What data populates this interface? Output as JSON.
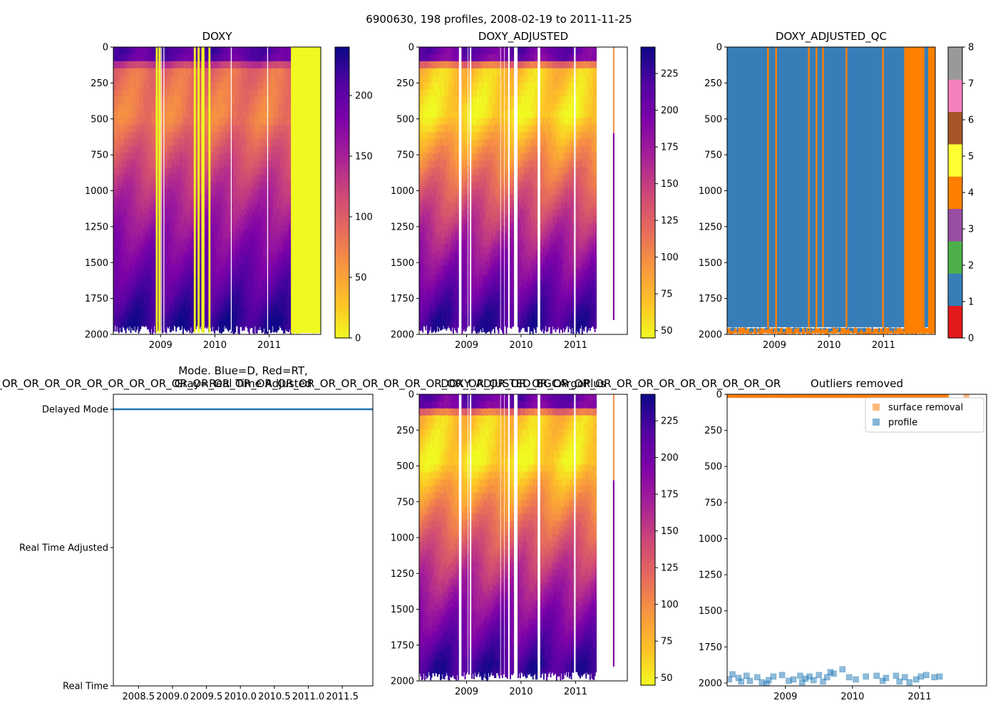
{
  "figure": {
    "suptitle": "6900630, 198 profiles, 2008-02-19 to 2011-11-25"
  },
  "chart_data": [
    {
      "id": "doxy",
      "type": "heatmap",
      "title": "DOXY",
      "colormap": "plasma_r",
      "xlim": [
        2008.13,
        2011.95
      ],
      "ylim": [
        2000,
        0
      ],
      "x_ticks": [
        {
          "value": 2009,
          "label": "2009"
        },
        {
          "value": 2010,
          "label": "2010"
        },
        {
          "value": 2011,
          "label": "2011"
        }
      ],
      "y_ticks": [
        {
          "value": 0,
          "label": "0"
        },
        {
          "value": 250,
          "label": "250"
        },
        {
          "value": 500,
          "label": "500"
        },
        {
          "value": 750,
          "label": "750"
        },
        {
          "value": 1000,
          "label": "1000"
        },
        {
          "value": 1250,
          "label": "1250"
        },
        {
          "value": 1500,
          "label": "1500"
        },
        {
          "value": 1750,
          "label": "1750"
        },
        {
          "value": 2000,
          "label": "2000"
        }
      ],
      "colorbar": {
        "min": 0,
        "max": 240,
        "ticks": [
          {
            "value": 0,
            "label": "0"
          },
          {
            "value": 50,
            "label": "50"
          },
          {
            "value": 100,
            "label": "100"
          },
          {
            "value": 150,
            "label": "150"
          },
          {
            "value": 200,
            "label": "200"
          }
        ]
      },
      "profile": {
        "surface": 205,
        "omz_depth": 500,
        "omz_value": 75,
        "deep_value": 225
      },
      "gaps": [
        {
          "start": 2011.4,
          "end": 2011.95,
          "value": 0
        }
      ],
      "zero_profiles": [
        2008.93,
        2008.98,
        2009.63,
        2009.7,
        2009.77,
        2009.79,
        2009.9
      ],
      "white_lines": [
        2009.01,
        2009.06,
        2010.3,
        2010.97
      ],
      "data_end": 2011.4
    },
    {
      "id": "doxy_adjusted",
      "type": "heatmap",
      "title": "DOXY_ADJUSTED",
      "colormap": "plasma_r",
      "xlim": [
        2008.13,
        2011.95
      ],
      "ylim": [
        2000,
        0
      ],
      "x_ticks": [
        {
          "value": 2009,
          "label": "2009"
        },
        {
          "value": 2010,
          "label": "2010"
        },
        {
          "value": 2011,
          "label": "2011"
        }
      ],
      "y_ticks": [
        {
          "value": 0,
          "label": "0"
        },
        {
          "value": 250,
          "label": "250"
        },
        {
          "value": 500,
          "label": "500"
        },
        {
          "value": 750,
          "label": "750"
        },
        {
          "value": 1000,
          "label": "1000"
        },
        {
          "value": 1250,
          "label": "1250"
        },
        {
          "value": 1500,
          "label": "1500"
        },
        {
          "value": 1750,
          "label": "1750"
        },
        {
          "value": 2000,
          "label": "2000"
        }
      ],
      "colorbar": {
        "min": 45,
        "max": 243,
        "ticks": [
          {
            "value": 50,
            "label": "50"
          },
          {
            "value": 75,
            "label": "75"
          },
          {
            "value": 100,
            "label": "100"
          },
          {
            "value": 125,
            "label": "125"
          },
          {
            "value": 150,
            "label": "150"
          },
          {
            "value": 175,
            "label": "175"
          },
          {
            "value": 200,
            "label": "200"
          },
          {
            "value": 225,
            "label": "225"
          }
        ]
      },
      "profile": {
        "surface": 205,
        "omz_depth": 480,
        "omz_value": 55,
        "deep_value": 225
      },
      "missing_profiles": [
        2008.87,
        2008.89,
        2009.02,
        2009.07,
        2009.62,
        2009.69,
        2009.76,
        2009.78,
        2009.88,
        2009.92,
        2010.31,
        2010.33,
        2010.98
      ],
      "data_end": 2011.38,
      "stray_profile": {
        "x": 2011.7,
        "depth_end": 1900,
        "value": 100
      }
    },
    {
      "id": "doxy_adjusted_qc",
      "type": "heatmap",
      "title": "DOXY_ADJUSTED_QC",
      "colormap": "qc",
      "xlim": [
        2008.13,
        2011.95
      ],
      "ylim": [
        2000,
        0
      ],
      "x_ticks": [
        {
          "value": 2009,
          "label": "2009"
        },
        {
          "value": 2010,
          "label": "2010"
        },
        {
          "value": 2011,
          "label": "2011"
        }
      ],
      "y_ticks": [
        {
          "value": 0,
          "label": "0"
        },
        {
          "value": 250,
          "label": "250"
        },
        {
          "value": 500,
          "label": "500"
        },
        {
          "value": 750,
          "label": "750"
        },
        {
          "value": 1000,
          "label": "1000"
        },
        {
          "value": 1250,
          "label": "1250"
        },
        {
          "value": 1500,
          "label": "1500"
        },
        {
          "value": 1750,
          "label": "1750"
        },
        {
          "value": 2000,
          "label": "2000"
        }
      ],
      "colorbar": {
        "min": 0,
        "max": 8,
        "ticks": [
          {
            "value": 0,
            "label": "0"
          },
          {
            "value": 1,
            "label": "1"
          },
          {
            "value": 2,
            "label": "2"
          },
          {
            "value": 3,
            "label": "3"
          },
          {
            "value": 4,
            "label": "4"
          },
          {
            "value": 5,
            "label": "5"
          },
          {
            "value": 6,
            "label": "6"
          },
          {
            "value": 7,
            "label": "7"
          },
          {
            "value": 8,
            "label": "8"
          }
        ]
      },
      "qc_colors": [
        "#e41a1c",
        "#377eb8",
        "#4daf4a",
        "#984ea3",
        "#ff7f00",
        "#ffff33",
        "#a65628",
        "#f781bf",
        "#999999"
      ],
      "flag4_profiles": [
        2008.88,
        2009.03,
        2009.63,
        2009.77,
        2009.89,
        2010.32,
        2010.99
      ],
      "flag4_block": [
        2011.38,
        2011.75
      ],
      "flag4_block2": [
        2011.82,
        2011.95
      ],
      "flag1_stripe": 2011.78,
      "data_end": 2011.95
    },
    {
      "id": "mode",
      "type": "line",
      "title_lines": [
        "Mode. Blue=D, Red=RT,",
        "Gray=Real Time Adjusted"
      ],
      "overflow_text": "OR_OR_OR_OR_OR_OR_OR_OR_OR_OR_OR_OR_OR_OR_OR_OR_OR_OR_OR_OR_OR_OR_OR_OR_OR_OR_OR_OR_OR_OR_OR_OR_OR_OR_OR_OR_OR_OR_OR_OR_OR_OR_OR_OR_OR_OR_OR_OR_OR_OR_OR",
      "xlim": [
        2008.13,
        2011.95
      ],
      "x_ticks": [
        {
          "value": 2008.5,
          "label": "2008.5"
        },
        {
          "value": 2009.0,
          "label": "2009.0"
        },
        {
          "value": 2009.5,
          "label": "2009.5"
        },
        {
          "value": 2010.0,
          "label": "2010.0"
        },
        {
          "value": 2010.5,
          "label": "2010.5"
        },
        {
          "value": 2011.0,
          "label": "2011.0"
        },
        {
          "value": 2011.5,
          "label": "2011.5"
        }
      ],
      "y_categories": [
        "Real Time",
        "Real Time Adjusted",
        "Delayed Mode"
      ],
      "series": [
        {
          "name": "mode",
          "x": [
            2008.13,
            2011.95
          ],
          "y": [
            "Delayed Mode",
            "Delayed Mode"
          ],
          "color": "#1f77b4"
        }
      ]
    },
    {
      "id": "doxy_adjusted_bgcargoplus",
      "type": "heatmap",
      "title": "DOXY_ADJUSTED_BGCArgoPlus",
      "colormap": "plasma_r",
      "xlim": [
        2008.13,
        2011.95
      ],
      "ylim": [
        2000,
        0
      ],
      "x_ticks": [
        {
          "value": 2009,
          "label": "2009"
        },
        {
          "value": 2010,
          "label": "2010"
        },
        {
          "value": 2011,
          "label": "2011"
        }
      ],
      "y_ticks": [
        {
          "value": 0,
          "label": "0"
        },
        {
          "value": 250,
          "label": "250"
        },
        {
          "value": 500,
          "label": "500"
        },
        {
          "value": 750,
          "label": "750"
        },
        {
          "value": 1000,
          "label": "1000"
        },
        {
          "value": 1250,
          "label": "1250"
        },
        {
          "value": 1500,
          "label": "1500"
        },
        {
          "value": 1750,
          "label": "1750"
        },
        {
          "value": 2000,
          "label": "2000"
        }
      ],
      "colorbar": {
        "min": 45,
        "max": 243,
        "ticks": [
          {
            "value": 50,
            "label": "50"
          },
          {
            "value": 75,
            "label": "75"
          },
          {
            "value": 100,
            "label": "100"
          },
          {
            "value": 125,
            "label": "125"
          },
          {
            "value": 150,
            "label": "150"
          },
          {
            "value": 175,
            "label": "175"
          },
          {
            "value": 200,
            "label": "200"
          },
          {
            "value": 225,
            "label": "225"
          }
        ]
      },
      "profile": {
        "surface": 205,
        "omz_depth": 480,
        "omz_value": 55,
        "deep_value": 225
      },
      "missing_profiles": [
        2008.87,
        2008.89,
        2009.02,
        2009.07,
        2009.62,
        2009.69,
        2009.76,
        2009.78,
        2009.88,
        2009.92,
        2010.31,
        2010.33,
        2010.98
      ],
      "data_end": 2011.38,
      "stray_profile": {
        "x": 2011.7,
        "depth_end": 1900,
        "value": 100
      }
    },
    {
      "id": "outliers",
      "type": "scatter",
      "title": "Outliers removed",
      "xlim": [
        2008.13,
        2012.0
      ],
      "ylim": [
        2020,
        0
      ],
      "x_ticks": [
        {
          "value": 2009,
          "label": "2009"
        },
        {
          "value": 2010,
          "label": "2010"
        },
        {
          "value": 2011,
          "label": "2011"
        }
      ],
      "y_ticks": [
        {
          "value": 0,
          "label": "0"
        },
        {
          "value": 250,
          "label": "250"
        },
        {
          "value": 500,
          "label": "500"
        },
        {
          "value": 750,
          "label": "750"
        },
        {
          "value": 1000,
          "label": "1000"
        },
        {
          "value": 1250,
          "label": "1250"
        },
        {
          "value": 1500,
          "label": "1500"
        },
        {
          "value": 1750,
          "label": "1750"
        },
        {
          "value": 2000,
          "label": "2000"
        }
      ],
      "legend_position": "top-right",
      "series": [
        {
          "name": "surface removal",
          "color": "#ff7f0e",
          "x": [
            2008.15,
            2008.3,
            2008.45,
            2008.6,
            2008.75,
            2008.9,
            2009.05,
            2009.2,
            2009.35,
            2009.5,
            2009.65,
            2009.8,
            2009.95,
            2010.1,
            2010.25,
            2010.4,
            2010.55,
            2010.7,
            2010.85,
            2011.0,
            2011.15,
            2011.3,
            2011.4,
            2011.7
          ],
          "y": [
            2,
            4,
            3,
            5,
            2,
            4,
            6,
            3,
            2,
            5,
            4,
            3,
            2,
            4,
            5,
            3,
            2,
            4,
            3,
            2,
            5,
            4,
            3,
            2
          ]
        },
        {
          "name": "profile",
          "color": "#1f77b4",
          "x": [
            2008.16,
            2008.21,
            2008.3,
            2008.34,
            2008.42,
            2008.47,
            2008.58,
            2008.65,
            2008.72,
            2008.75,
            2008.82,
            2008.95,
            2009.05,
            2009.12,
            2009.22,
            2009.25,
            2009.3,
            2009.36,
            2009.42,
            2009.5,
            2009.56,
            2009.62,
            2009.67,
            2009.72,
            2009.85,
            2009.95,
            2010.05,
            2010.2,
            2010.36,
            2010.45,
            2010.5,
            2010.65,
            2010.7,
            2010.78,
            2010.85,
            2010.95,
            2011.02,
            2011.1,
            2011.22,
            2011.3
          ],
          "y": [
            1975,
            1940,
            1965,
            1990,
            1950,
            1985,
            1960,
            1995,
            2005,
            1980,
            1955,
            1945,
            1985,
            1975,
            1950,
            1995,
            1970,
            1955,
            1980,
            1945,
            1990,
            1960,
            1925,
            1935,
            1905,
            1960,
            1975,
            1955,
            1950,
            1985,
            1965,
            1950,
            1990,
            1960,
            1995,
            1975,
            1955,
            1945,
            1960,
            1955
          ]
        }
      ]
    }
  ]
}
